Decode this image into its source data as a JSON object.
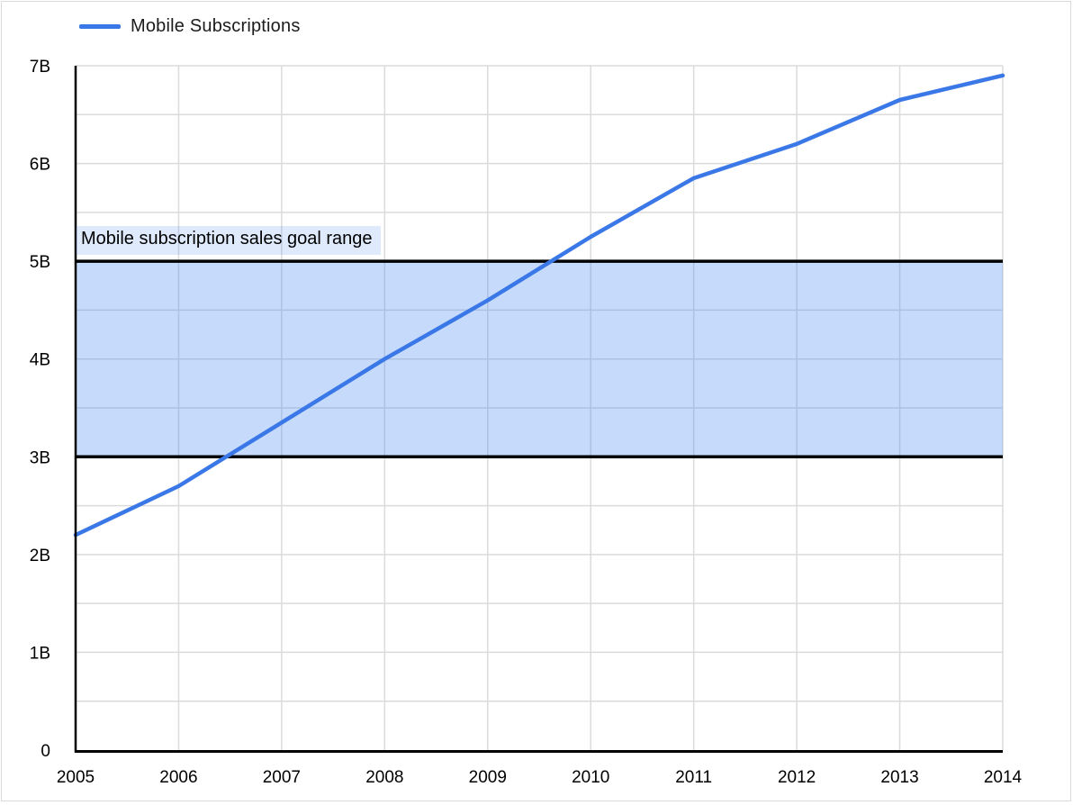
{
  "legend": {
    "label": "Mobile Subscriptions"
  },
  "colors": {
    "line": "#3B78E7",
    "band_fill": "rgba(66,133,244,0.30)",
    "band_label_bg": "rgba(66,133,244,0.17)",
    "band_border": "#000000",
    "grid": "#DBDBDB",
    "axis": "#000000",
    "text": "#000000",
    "frame_border": "#DADADA"
  },
  "chart_data": {
    "type": "line",
    "title": "",
    "xlabel": "",
    "ylabel": "",
    "x": [
      2005,
      2006,
      2007,
      2008,
      2009,
      2010,
      2011,
      2012,
      2013,
      2014
    ],
    "xtick_labels": [
      "2005",
      "2006",
      "2007",
      "2008",
      "2009",
      "2010",
      "2011",
      "2012",
      "2013",
      "2014"
    ],
    "xlim": [
      2005,
      2014
    ],
    "series": [
      {
        "name": "Mobile Subscriptions",
        "color": "#3B78E7",
        "values": [
          2.2,
          2.7,
          3.35,
          4.0,
          4.6,
          5.25,
          5.85,
          6.2,
          6.65,
          6.9
        ]
      }
    ],
    "ylim": [
      0,
      7
    ],
    "y_major_ticks": [
      0,
      1,
      2,
      3,
      4,
      5,
      6,
      7
    ],
    "ytick_labels": [
      "0",
      "1B",
      "2B",
      "3B",
      "4B",
      "5B",
      "6B",
      "7B"
    ],
    "y_grid_step": 0.5,
    "grid": true,
    "legend_position": "top-left",
    "band": {
      "from": 3,
      "to": 5,
      "label": "Mobile subscription sales goal range"
    }
  }
}
